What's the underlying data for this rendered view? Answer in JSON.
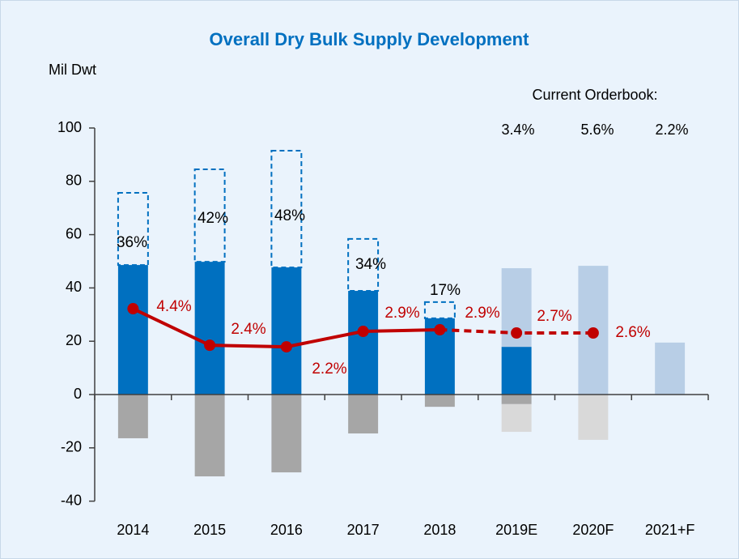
{
  "chart_data": {
    "type": "bar",
    "title": "Overall Dry Bulk Supply Development",
    "y_label": "Mil Dwt",
    "categories": [
      "2014",
      "2015",
      "2016",
      "2017",
      "2018",
      "2019E",
      "2020F",
      "2021+F"
    ],
    "ylim": [
      -40,
      100
    ],
    "yticks": [
      -40,
      -20,
      0,
      20,
      40,
      60,
      80,
      100
    ],
    "series": [
      {
        "color": "#0070c0",
        "style": "solid",
        "values": [
          48.6,
          49.8,
          47.7,
          38.9,
          28.6,
          17.9,
          null,
          null
        ]
      },
      {
        "color": "#0070c0",
        "style": "dashed",
        "values": [
          27.1,
          34.7,
          43.8,
          19.5,
          6.1,
          null,
          null,
          null
        ]
      },
      {
        "color": "#b8cee6",
        "style": "solid",
        "values": [
          null,
          null,
          null,
          null,
          null,
          29.5,
          48.3,
          19.5
        ]
      },
      {
        "color": "#a6a6a6",
        "style": "solid",
        "values": [
          -16.4,
          -30.7,
          -29.2,
          -14.6,
          -4.6,
          -3.6,
          null,
          null
        ]
      },
      {
        "color": "#d9d9d9",
        "style": "solid",
        "values": [
          null,
          null,
          null,
          null,
          null,
          -10.4,
          -17,
          null
        ]
      }
    ],
    "line": {
      "color": "#c00000",
      "dashed_from": 4,
      "values": [
        32.2,
        18.5,
        17.9,
        23.7,
        24.3,
        23.1,
        23.1,
        null
      ]
    },
    "line_labels": [
      "4.4%",
      "2.4%",
      "2.2%",
      "2.9%",
      "2.9%",
      "2.7%",
      "2.6%"
    ],
    "bar_labels": [
      "36%",
      "42%",
      "48%",
      "34%",
      "17%"
    ],
    "orderbook_title": "Current Orderbook:",
    "orderbook_labels": [
      "3.4%",
      "5.6%",
      "2.2%"
    ]
  }
}
